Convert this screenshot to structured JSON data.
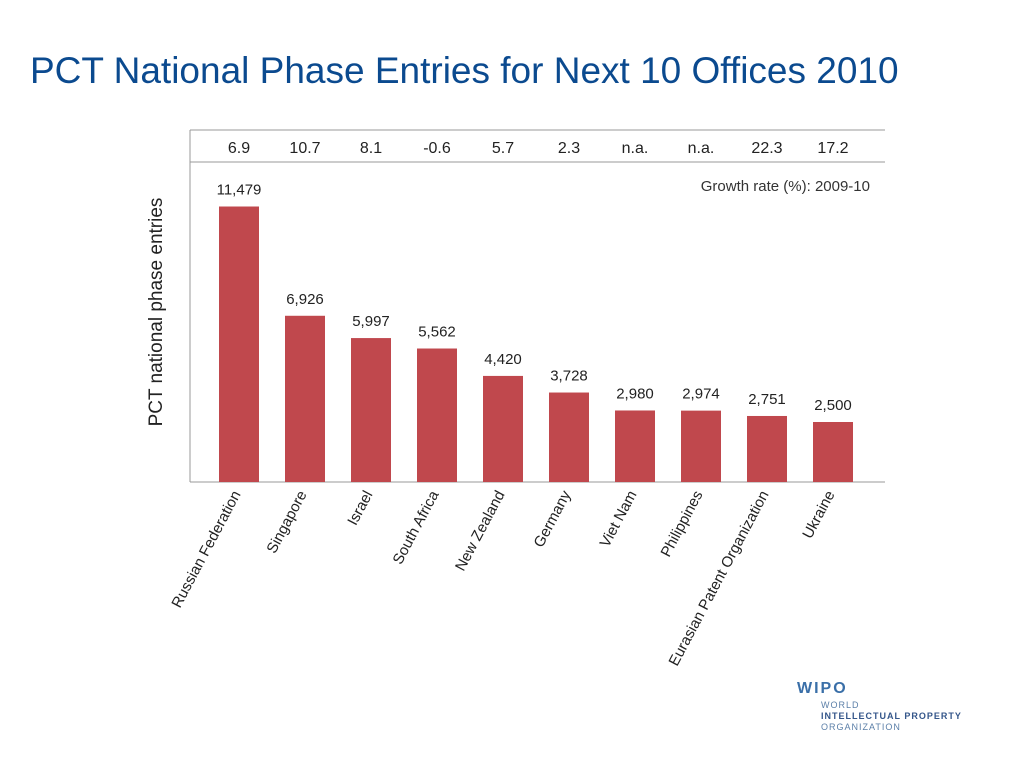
{
  "slide": {
    "title": "PCT National Phase Entries for Next 10 Offices 2010"
  },
  "chart_data": {
    "type": "bar",
    "categories": [
      "Russian Federation",
      "Singapore",
      "Israel",
      "South Africa",
      "New Zealand",
      "Germany",
      "Viet Nam",
      "Philippines",
      "Eurasian Patent Organization",
      "Ukraine"
    ],
    "values": [
      11479,
      6926,
      5997,
      5562,
      4420,
      3728,
      2980,
      2974,
      2751,
      2500
    ],
    "value_labels": [
      "11,479",
      "6,926",
      "5,997",
      "5,562",
      "4,420",
      "3,728",
      "2,980",
      "2,974",
      "2,751",
      "2,500"
    ],
    "growth_rates": [
      "6.9",
      "10.7",
      "8.1",
      "-0.6",
      "5.7",
      "2.3",
      "n.a.",
      "n.a.",
      "22.3",
      "17.2"
    ],
    "growth_label": "Growth rate (%): 2009-10",
    "ylabel": "PCT national phase entries",
    "xlabel": "",
    "ylim": [
      0,
      12500
    ],
    "grid": false,
    "bar_color": "#c0484d"
  },
  "logo": {
    "acronym": "WIPO",
    "lines": [
      "WORLD",
      "INTELLECTUAL PROPERTY",
      "ORGANIZATION"
    ]
  }
}
